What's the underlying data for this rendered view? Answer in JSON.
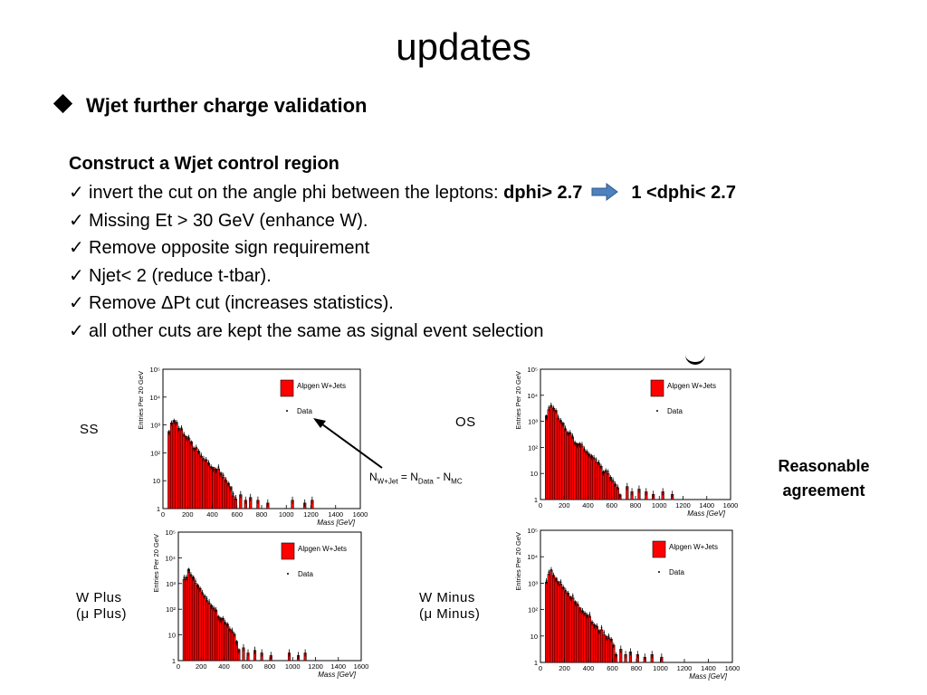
{
  "title": "updates",
  "bullet": "Wjet  further charge validation",
  "heading": "Construct a Wjet control region",
  "checks": {
    "mark": "✓",
    "c1_text": "invert the cut on the angle phi between the leptons: ",
    "c1_from": "dphi> 2.7",
    "c1_to": "1 <dphi< 2.7",
    "c2": "Missing Et > 30 GeV (enhance W).",
    "c3": "Remove opposite sign requirement",
    "c4": "Njet< 2 (reduce t-tbar).",
    "c5": "Remove ΔPt cut (increases statistics).",
    "c6": "all other cuts are kept the same as signal event selection"
  },
  "note": {
    "line1": "Reasonable",
    "line2": "agreement"
  },
  "formula": {
    "n": "N",
    "wjet": "W+Jet",
    "eq": " = N",
    "data": "Data",
    "minus": " - N",
    "mc": "MC"
  },
  "labels": {
    "ss": "SS",
    "os": "OS",
    "wplus1": "W Plus",
    "wplus2": "(μ Plus)",
    "wminus1": "W Minus",
    "wminus2": "(μ Minus)"
  },
  "colors": {
    "fill": "#ff0000",
    "arrow": "#4f81bd"
  },
  "chart_data": [
    {
      "type": "bar",
      "panel": "SS",
      "ylabel": "Entries Per 20 GeV",
      "xlabel": "Mass [GeV]",
      "xlim": [
        0,
        1600
      ],
      "ylim_log10": [
        0,
        5
      ],
      "xticks": [
        0,
        200,
        400,
        600,
        800,
        1000,
        1200,
        1400,
        1600
      ],
      "yticks": [
        "1",
        "10",
        "10²",
        "10³",
        "10⁴",
        "10⁵"
      ],
      "legend": [
        "Alpgen W+Jets",
        "Data"
      ],
      "x_last": 600,
      "mc_log10_profile": [
        [
          60,
          2.8
        ],
        [
          80,
          3.2
        ],
        [
          120,
          2.95
        ],
        [
          200,
          2.5
        ],
        [
          300,
          1.95
        ],
        [
          400,
          1.55
        ],
        [
          500,
          1.15
        ],
        [
          560,
          0.65
        ],
        [
          600,
          0.2
        ]
      ],
      "tail_points": [
        [
          620,
          0.5
        ],
        [
          660,
          0.3
        ],
        [
          700,
          0.4
        ],
        [
          760,
          0.3
        ],
        [
          840,
          0.2
        ],
        [
          1040,
          0.3
        ],
        [
          1140,
          0.2
        ],
        [
          1200,
          0.3
        ]
      ]
    },
    {
      "type": "bar",
      "panel": "OS",
      "ylabel": "Entries Per 20 GeV",
      "xlabel": "Mass [GeV]",
      "xlim": [
        0,
        1600
      ],
      "ylim_log10": [
        0,
        5
      ],
      "xticks": [
        0,
        200,
        400,
        600,
        800,
        1000,
        1200,
        1400,
        1600
      ],
      "yticks": [
        "1",
        "10",
        "10²",
        "10³",
        "10⁴",
        "10⁵"
      ],
      "legend": [
        "Alpgen W+Jets",
        "Data"
      ],
      "x_last": 680,
      "mc_log10_profile": [
        [
          60,
          3.2
        ],
        [
          80,
          3.7
        ],
        [
          120,
          3.4
        ],
        [
          200,
          2.85
        ],
        [
          300,
          2.2
        ],
        [
          400,
          1.8
        ],
        [
          500,
          1.3
        ],
        [
          600,
          0.75
        ],
        [
          680,
          0.2
        ]
      ],
      "tail_points": [
        [
          720,
          0.5
        ],
        [
          760,
          0.3
        ],
        [
          820,
          0.4
        ],
        [
          880,
          0.3
        ],
        [
          940,
          0.2
        ],
        [
          1020,
          0.3
        ],
        [
          1100,
          0.2
        ]
      ]
    },
    {
      "type": "bar",
      "panel": "W Plus",
      "ylabel": "Entries Per 20 GeV",
      "xlabel": "Mass [GeV]",
      "xlim": [
        0,
        1600
      ],
      "ylim_log10": [
        0,
        5
      ],
      "xticks": [
        0,
        200,
        400,
        600,
        800,
        1000,
        1200,
        1400,
        1600
      ],
      "yticks": [
        "1",
        "10",
        "10²",
        "10³",
        "10⁴",
        "10⁵"
      ],
      "legend": [
        "Alpgen W+Jets",
        "Data"
      ],
      "x_last": 540,
      "mc_log10_profile": [
        [
          60,
          3.1
        ],
        [
          80,
          3.55
        ],
        [
          120,
          3.3
        ],
        [
          200,
          2.75
        ],
        [
          300,
          2.1
        ],
        [
          400,
          1.5
        ],
        [
          500,
          1.0
        ],
        [
          540,
          0.2
        ]
      ],
      "tail_points": [
        [
          560,
          0.5
        ],
        [
          600,
          0.3
        ],
        [
          660,
          0.4
        ],
        [
          720,
          0.3
        ],
        [
          800,
          0.2
        ],
        [
          960,
          0.3
        ],
        [
          1040,
          0.2
        ],
        [
          1100,
          0.3
        ]
      ]
    },
    {
      "type": "bar",
      "panel": "W Minus",
      "ylabel": "Entries Per 20 GeV",
      "xlabel": "Mass [GeV]",
      "xlim": [
        0,
        1600
      ],
      "ylim_log10": [
        0,
        5
      ],
      "xticks": [
        0,
        200,
        400,
        600,
        800,
        1000,
        1200,
        1400,
        1600
      ],
      "yticks": [
        "1",
        "10",
        "10²",
        "10³",
        "10⁴",
        "10⁵"
      ],
      "legend": [
        "Alpgen W+Jets",
        "Data"
      ],
      "x_last": 640,
      "mc_log10_profile": [
        [
          60,
          3.1
        ],
        [
          80,
          3.55
        ],
        [
          120,
          3.3
        ],
        [
          200,
          2.8
        ],
        [
          300,
          2.2
        ],
        [
          400,
          1.75
        ],
        [
          500,
          1.25
        ],
        [
          600,
          0.75
        ],
        [
          640,
          0.2
        ]
      ],
      "tail_points": [
        [
          660,
          0.5
        ],
        [
          700,
          0.3
        ],
        [
          740,
          0.4
        ],
        [
          800,
          0.3
        ],
        [
          860,
          0.2
        ],
        [
          920,
          0.3
        ],
        [
          1000,
          0.2
        ]
      ]
    }
  ]
}
